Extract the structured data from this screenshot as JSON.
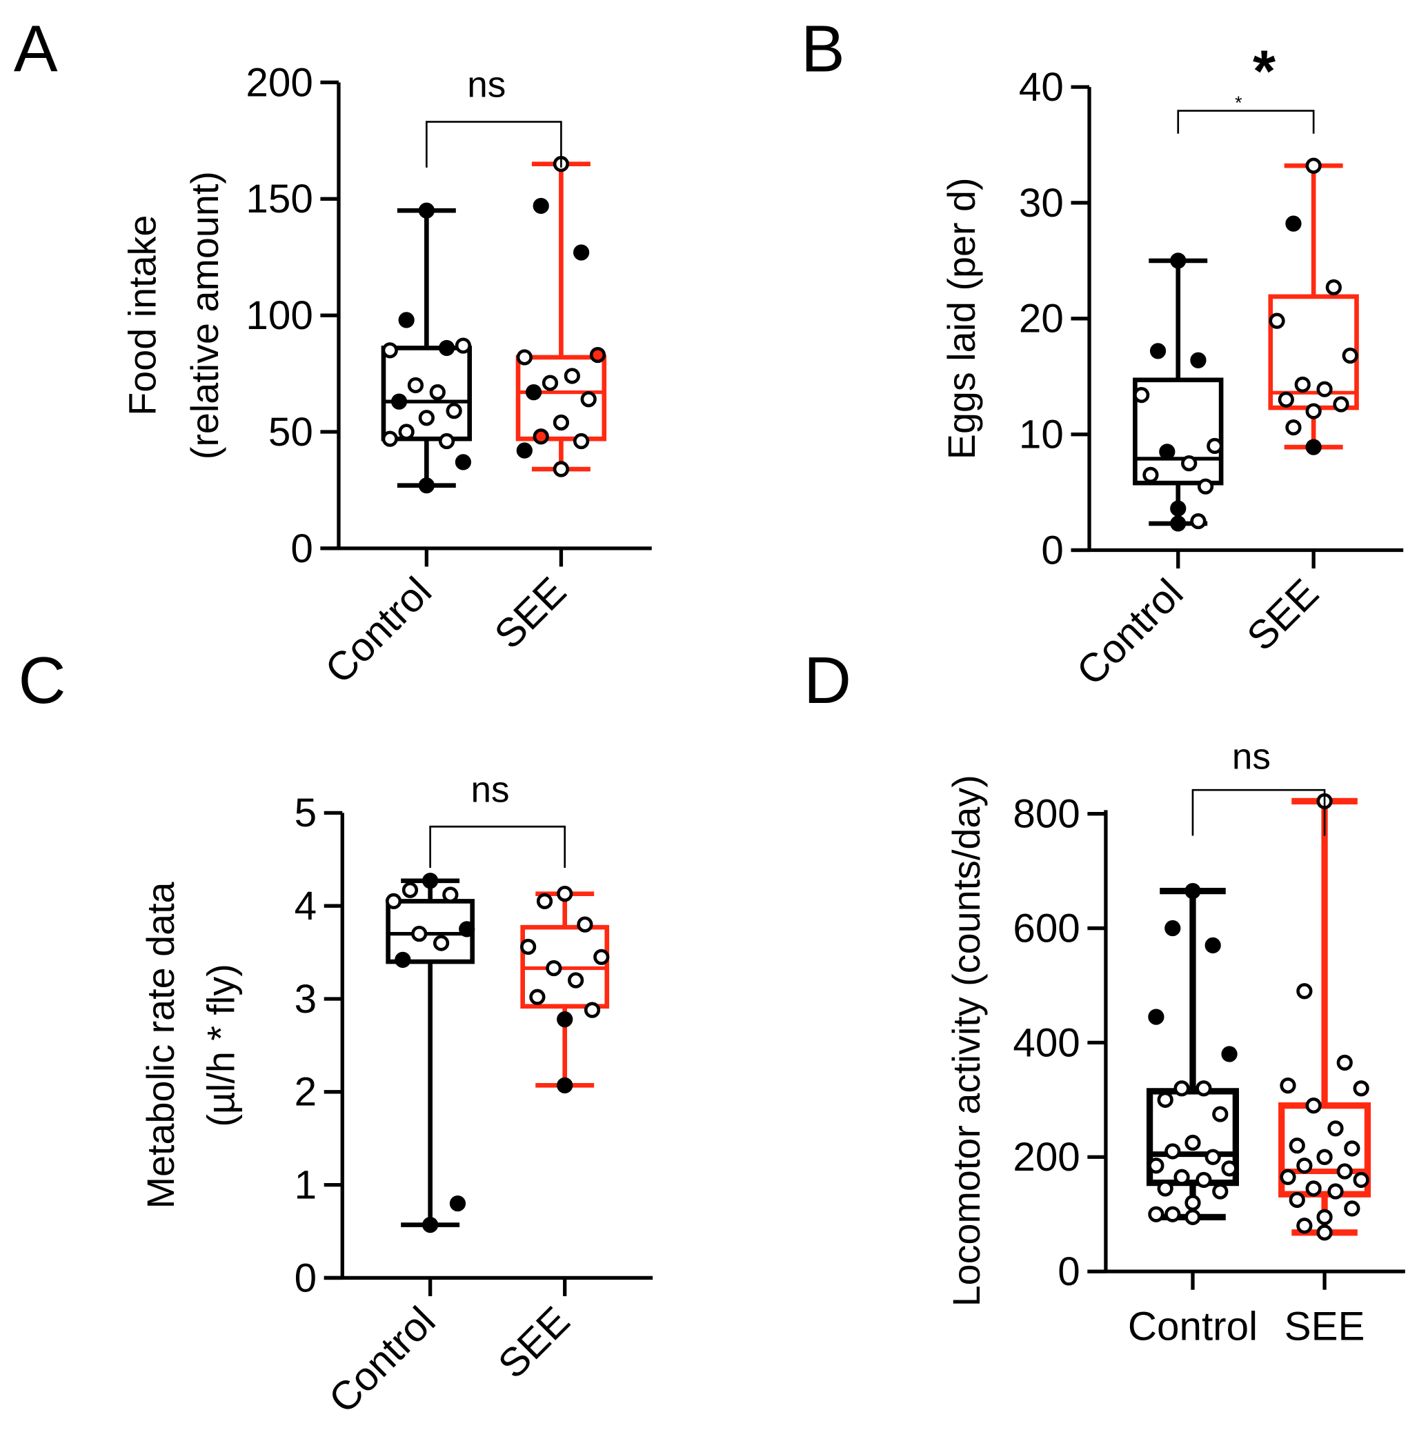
{
  "colors": {
    "control": "#000000",
    "see": "#ff2a12"
  },
  "chart_data": [
    {
      "panel": "A",
      "type": "box",
      "ylabel": [
        "Food intake",
        "(relative amount)"
      ],
      "categories": [
        "Control",
        "SEE"
      ],
      "ylim": [
        0,
        200
      ],
      "yticks": [
        "0",
        "50",
        "100",
        "150",
        "200"
      ],
      "ytick_values": [
        0,
        50,
        100,
        150,
        200
      ],
      "significance": "ns",
      "series": [
        {
          "name": "Control",
          "min": 27,
          "q1": 47,
          "median": 63,
          "q3": 86,
          "max": 145,
          "points": [
            145,
            98,
            86,
            85,
            87,
            70,
            67,
            63,
            59,
            56,
            50,
            46,
            47,
            37,
            27
          ],
          "filled": [
            1,
            1,
            1,
            0,
            0,
            0,
            0,
            1,
            0,
            0,
            0,
            0,
            0,
            1,
            1
          ]
        },
        {
          "name": "SEE",
          "min": 34,
          "q1": 47,
          "median": 67,
          "q3": 82,
          "max": 165,
          "points": [
            165,
            147,
            127,
            82,
            83,
            71,
            74,
            67,
            64,
            54,
            48,
            46,
            42,
            34,
            34
          ],
          "filled": [
            0,
            1,
            1,
            0,
            0,
            0,
            0,
            1,
            0,
            0,
            0,
            0,
            1,
            1,
            0
          ]
        }
      ]
    },
    {
      "panel": "B",
      "type": "box",
      "ylabel": [
        "Eggs laid (per d)"
      ],
      "categories": [
        "Control",
        "SEE"
      ],
      "ylim": [
        0,
        40
      ],
      "yticks": [
        "0",
        "10",
        "20",
        "30",
        "40"
      ],
      "ytick_values": [
        0,
        10,
        20,
        30,
        40
      ],
      "significance": "*",
      "significance_small": "*",
      "series": [
        {
          "name": "Control",
          "min": 2.3,
          "q1": 5.8,
          "median": 7.9,
          "q3": 14.7,
          "max": 25,
          "points": [
            25,
            17.2,
            16.4,
            13.4,
            9,
            8.5,
            7.5,
            6.5,
            5.5,
            3.6,
            2.3,
            2.5
          ],
          "filled": [
            1,
            1,
            1,
            0,
            0,
            1,
            0,
            0,
            0,
            1,
            1,
            0
          ]
        },
        {
          "name": "SEE",
          "min": 8.9,
          "q1": 12.3,
          "median": 13.6,
          "q3": 21.9,
          "max": 33.2,
          "points": [
            33.2,
            28.2,
            22.7,
            19.8,
            16.8,
            14.3,
            13.9,
            13,
            12.6,
            12,
            10.6,
            8.9
          ],
          "filled": [
            0,
            1,
            0,
            0,
            0,
            0,
            0,
            0,
            0,
            0,
            0,
            1
          ]
        }
      ]
    },
    {
      "panel": "C",
      "type": "box",
      "ylabel": [
        "Metabolic rate data",
        "(µl/h * fly)"
      ],
      "categories": [
        "Control",
        "SEE"
      ],
      "ylim": [
        0,
        5
      ],
      "yticks": [
        "0",
        "1",
        "2",
        "3",
        "4",
        "5"
      ],
      "ytick_values": [
        0,
        1,
        2,
        3,
        4,
        5
      ],
      "significance": "ns",
      "series": [
        {
          "name": "Control",
          "min": 0.57,
          "q1": 3.4,
          "median": 3.7,
          "q3": 4.05,
          "max": 4.27,
          "points": [
            4.27,
            4.17,
            4.12,
            4.05,
            3.75,
            3.7,
            3.6,
            3.42,
            0.8,
            0.57
          ],
          "filled": [
            1,
            0,
            0,
            0,
            1,
            0,
            0,
            1,
            1,
            1
          ]
        },
        {
          "name": "SEE",
          "min": 2.07,
          "q1": 2.92,
          "median": 3.33,
          "q3": 3.77,
          "max": 4.13,
          "points": [
            4.13,
            4.05,
            3.8,
            3.56,
            3.45,
            3.33,
            3.2,
            3.02,
            2.88,
            2.78,
            2.07
          ],
          "filled": [
            0,
            0,
            0,
            0,
            0,
            0,
            0,
            0,
            0,
            1,
            1
          ]
        }
      ]
    },
    {
      "panel": "D",
      "type": "box",
      "ylabel": [
        "Locomotor activity (counts/day)"
      ],
      "categories": [
        "Control",
        "SEE"
      ],
      "ylim": [
        0,
        900
      ],
      "yticks": [
        "0",
        "200",
        "400",
        "600",
        "800"
      ],
      "ytick_values": [
        0,
        200,
        400,
        600,
        800
      ],
      "significance": "ns",
      "series": [
        {
          "name": "Control",
          "min": 95,
          "q1": 155,
          "median": 205,
          "q3": 315,
          "max": 665,
          "points": [
            665,
            600,
            570,
            445,
            380,
            320,
            320,
            300,
            275,
            225,
            210,
            200,
            185,
            180,
            165,
            160,
            145,
            140,
            120,
            100,
            95,
            100
          ],
          "filled": [
            1,
            1,
            1,
            1,
            1,
            0,
            0,
            0,
            0,
            0,
            0,
            0,
            0,
            0,
            0,
            0,
            0,
            0,
            0,
            0,
            0,
            0
          ]
        },
        {
          "name": "SEE",
          "min": 68,
          "q1": 135,
          "median": 175,
          "q3": 290,
          "max": 822,
          "points": [
            822,
            490,
            365,
            325,
            320,
            290,
            250,
            220,
            215,
            200,
            185,
            175,
            165,
            160,
            145,
            140,
            125,
            110,
            95,
            80,
            68
          ],
          "filled": [
            0,
            0,
            0,
            0,
            0,
            0,
            0,
            0,
            0,
            0,
            0,
            0,
            0,
            0,
            0,
            0,
            0,
            0,
            0,
            0,
            0
          ]
        }
      ]
    }
  ]
}
